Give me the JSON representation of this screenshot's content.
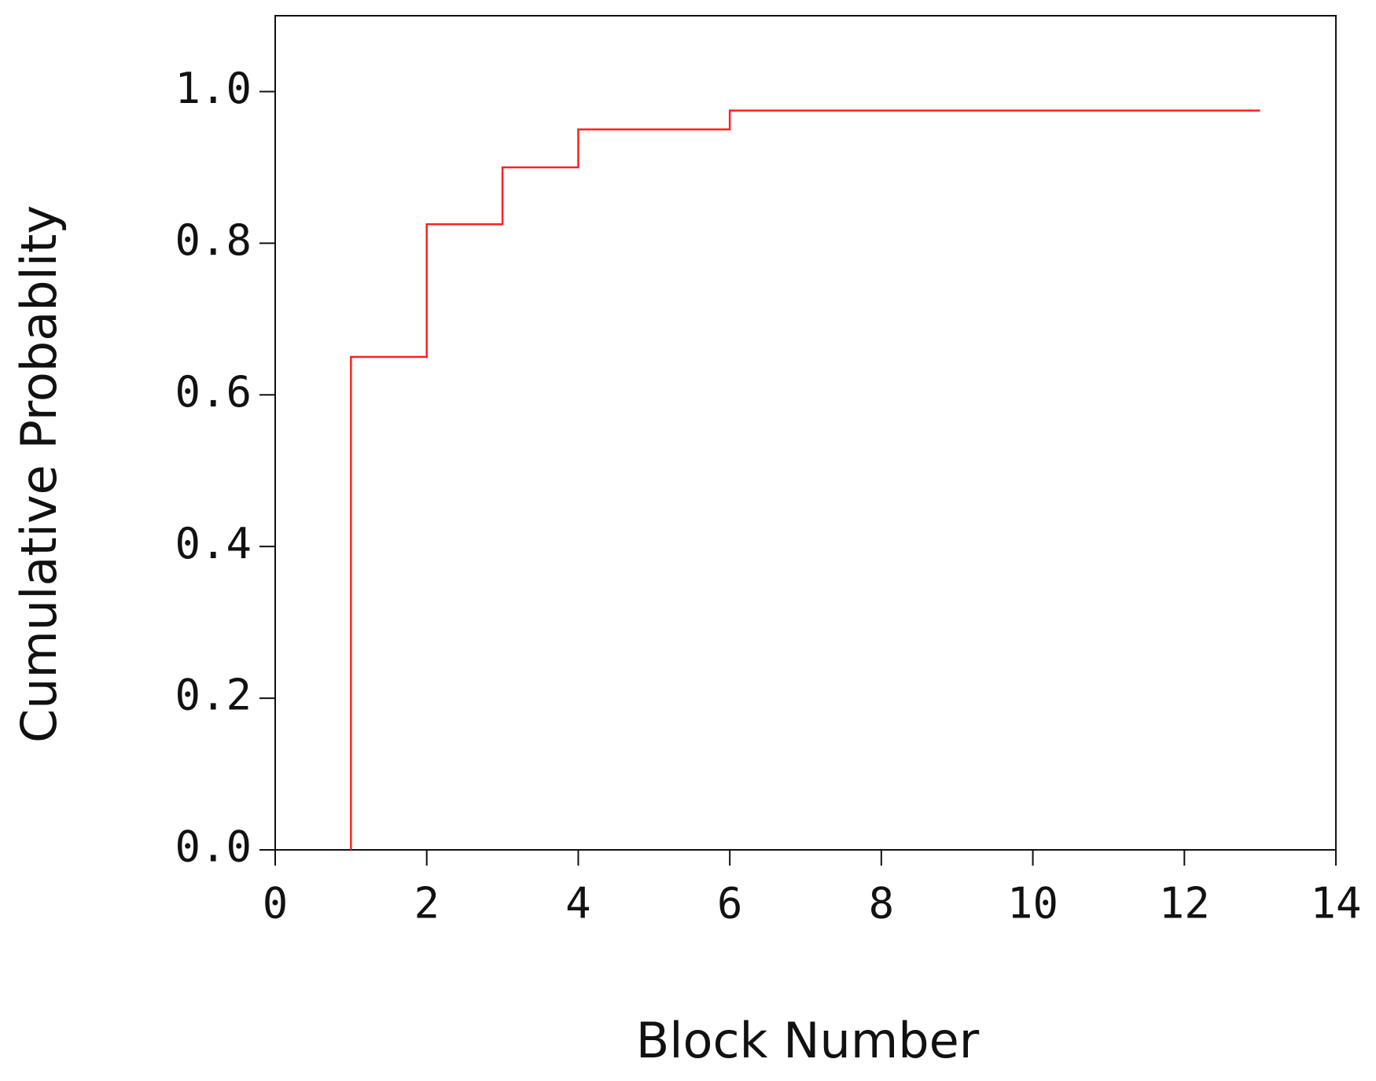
{
  "chart_data": {
    "type": "line",
    "xlabel": "Block Number",
    "ylabel": "Cumulative Probablity",
    "x": [
      1,
      1,
      2,
      2,
      3,
      3,
      4,
      4,
      6,
      6,
      13
    ],
    "series": [
      {
        "color": "#ff2020",
        "values": [
          0,
          0.65,
          0.65,
          0.825,
          0.825,
          0.9,
          0.9,
          0.95,
          0.95,
          0.975,
          0.975
        ]
      }
    ],
    "xlim": [
      0,
      14
    ],
    "xticks": [
      0,
      2,
      4,
      6,
      8,
      10,
      12,
      14
    ],
    "ylim": [
      0,
      1.1
    ],
    "yticks": [
      {
        "value": 0,
        "label": "0.0"
      },
      0.2,
      0.4,
      0.6,
      0.8,
      {
        "value": 1,
        "label": "1.0"
      }
    ],
    "grid": false
  }
}
